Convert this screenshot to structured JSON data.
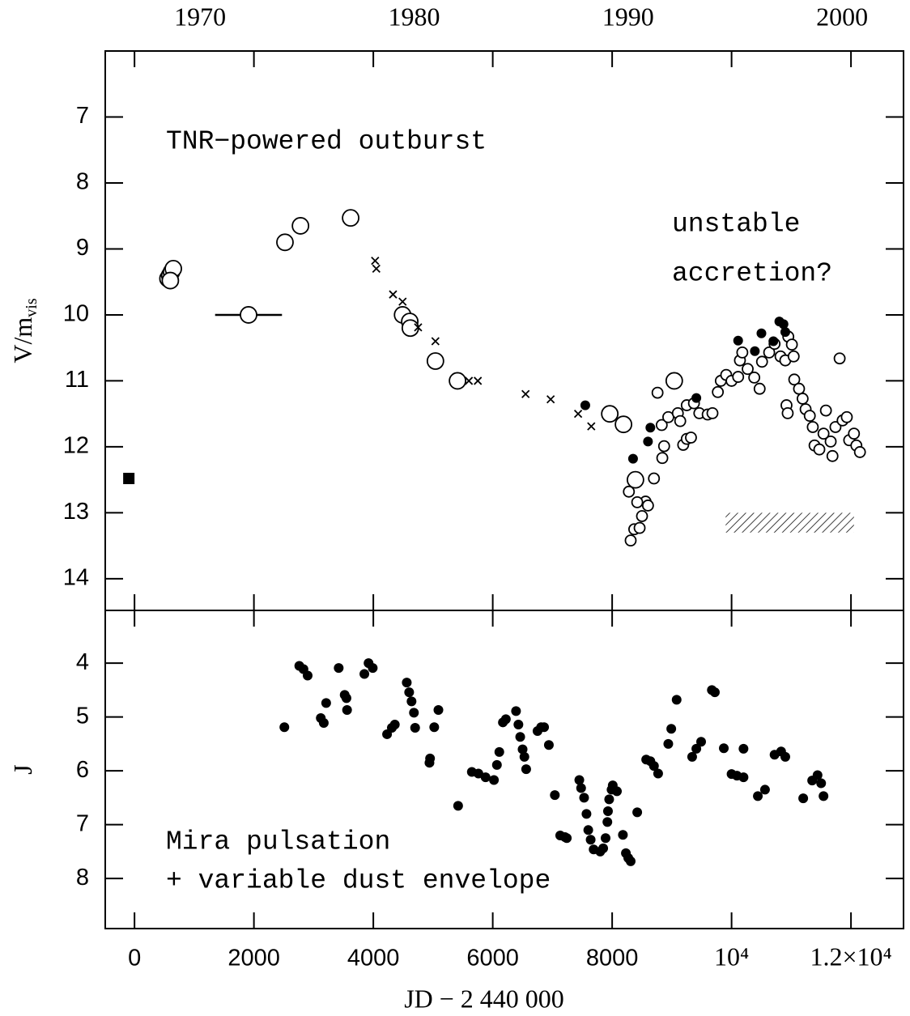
{
  "chart_data": [
    {
      "type": "scatter",
      "y_label": "V/m",
      "y_label_sub": "vis",
      "xlim": [
        -490,
        12880
      ],
      "ylim": [
        6,
        14.48
      ],
      "y_inverted": true,
      "xticks": [
        0,
        2000,
        4000,
        6000,
        8000,
        10000,
        12000
      ],
      "xtick_labels": false,
      "yticks": [
        7,
        8,
        9,
        10,
        11,
        12,
        13,
        14
      ],
      "x2lim": [
        1965.57,
        2002.87
      ],
      "x2ticks": [
        1970,
        1980,
        1990,
        2000
      ],
      "annotations": [
        "TNR−powered outburst",
        "unstable",
        "accretion?"
      ],
      "series": [
        {
          "marker": "open",
          "size": "large",
          "color": "#000000",
          "x": [
            560,
            590,
            620,
            650,
            600,
            1910,
            2520,
            2780,
            3620,
            4490,
            4610,
            4620,
            5040,
            5410,
            7960,
            8190,
            8390,
            9040
          ],
          "values": [
            9.45,
            9.4,
            9.35,
            9.3,
            9.48,
            10.0,
            8.9,
            8.65,
            8.53,
            10.0,
            10.1,
            10.2,
            10.7,
            11.0,
            11.5,
            11.66,
            12.5,
            11.0
          ]
        },
        {
          "marker": "open",
          "size": "small",
          "color": "#000000",
          "x": [
            8310,
            8370,
            8460,
            8500,
            8560,
            8600,
            8280,
            8420,
            8700,
            8840,
            8870,
            8760,
            8830,
            8940,
            9100,
            9140,
            9190,
            9250,
            9320,
            9250,
            9370,
            9460,
            9600,
            9680,
            9770,
            9820,
            9910,
            10000,
            10110,
            10140,
            10180,
            10270,
            10380,
            10470,
            10510,
            10630,
            10720,
            10820,
            10900,
            10950,
            11010,
            11040,
            10920,
            10940,
            11050,
            11130,
            11190,
            11240,
            11310,
            11360,
            11390,
            11470,
            11540,
            11580,
            11660,
            11690,
            11740,
            11810,
            11860,
            11930,
            11970,
            12050,
            12090,
            12150
          ],
          "values": [
            13.42,
            13.25,
            13.23,
            13.05,
            12.83,
            12.89,
            12.68,
            12.84,
            12.48,
            12.17,
            11.99,
            11.18,
            11.67,
            11.55,
            11.49,
            11.61,
            11.97,
            11.88,
            11.86,
            11.37,
            11.34,
            11.49,
            11.51,
            11.49,
            11.17,
            11.0,
            10.91,
            11.0,
            10.94,
            10.69,
            10.57,
            10.82,
            10.95,
            11.12,
            10.71,
            10.57,
            10.44,
            10.63,
            10.69,
            10.33,
            10.45,
            10.63,
            11.37,
            11.49,
            10.98,
            11.12,
            11.27,
            11.43,
            11.53,
            11.7,
            11.98,
            12.04,
            11.8,
            11.45,
            11.92,
            12.14,
            11.7,
            10.66,
            11.6,
            11.55,
            11.9,
            11.8,
            11.98,
            12.08
          ]
        },
        {
          "marker": "filled",
          "color": "#000000",
          "x": [
            7550,
            8350,
            8600,
            8640,
            9410,
            10110,
            10390,
            10500,
            10700,
            10800,
            10870,
            10900
          ],
          "values": [
            11.37,
            12.18,
            11.92,
            11.71,
            11.26,
            10.39,
            10.55,
            10.28,
            10.4,
            10.1,
            10.14,
            10.26
          ]
        },
        {
          "marker": "cross",
          "color": "#000000",
          "x": [
            4030,
            4050,
            4330,
            4490,
            4750,
            5040,
            5600,
            5750,
            6550,
            6970,
            7430,
            7650
          ],
          "values": [
            9.18,
            9.3,
            9.69,
            9.8,
            10.19,
            10.4,
            11.0,
            11.0,
            11.2,
            11.28,
            11.5,
            11.69
          ]
        },
        {
          "marker": "square",
          "color": "#000000",
          "x": [
            -95
          ],
          "values": [
            12.48
          ]
        }
      ],
      "errorbar": {
        "x": 1910,
        "xerr": 560,
        "y": 10.0
      },
      "shaded_region": {
        "x": [
          9900,
          12050
        ],
        "y": [
          13.0,
          13.3
        ]
      }
    },
    {
      "type": "scatter",
      "x_label": "JD − 2 440 000",
      "y_label": "J",
      "xlim": [
        -490,
        12880
      ],
      "ylim": [
        3.02,
        8.93
      ],
      "y_inverted": true,
      "xticks": [
        0,
        2000,
        4000,
        6000,
        8000,
        {
          "value": 10000,
          "label": "10⁴"
        },
        {
          "value": 12000,
          "label": "1.2×10⁴"
        }
      ],
      "xtick_labels": true,
      "yticks": [
        4,
        5,
        6,
        7,
        8
      ],
      "annotations": [
        "Mira pulsation",
        "+ variable dust envelope"
      ],
      "series": [
        {
          "marker": "filled",
          "color": "#000000",
          "x": [
            2510,
            2760,
            2830,
            2900,
            3120,
            3170,
            3210,
            3420,
            3520,
            3550,
            3560,
            3850,
            3920,
            3990,
            4230,
            4310,
            4360,
            4560,
            4600,
            4640,
            4680,
            4700,
            4940,
            4950,
            5020,
            5090,
            5420,
            5650,
            5760,
            5880,
            6020,
            6070,
            6110,
            6170,
            6220,
            6390,
            6430,
            6460,
            6500,
            6530,
            6560,
            6750,
            6810,
            6860,
            6940,
            7040,
            7130,
            7210,
            7240,
            7450,
            7480,
            7530,
            7570,
            7600,
            7640,
            7690,
            7800,
            7850,
            7890,
            7920,
            7930,
            7950,
            7990,
            8010,
            8080,
            8180,
            8230,
            8270,
            8310,
            8420,
            8570,
            8640,
            8700,
            8770,
            8940,
            8990,
            9080,
            9340,
            9410,
            9490,
            9670,
            9720,
            9870,
            10000,
            10090,
            10200,
            10200,
            10440,
            10560,
            10720,
            10830,
            10900,
            11200,
            11350,
            11440,
            11500,
            11540
          ],
          "values": [
            5.19,
            4.05,
            4.11,
            4.23,
            5.02,
            5.11,
            4.74,
            4.09,
            4.59,
            4.65,
            4.87,
            4.2,
            4.0,
            4.09,
            5.32,
            5.2,
            5.14,
            4.36,
            4.54,
            4.71,
            4.92,
            5.2,
            5.85,
            5.77,
            5.19,
            4.87,
            6.65,
            6.02,
            6.05,
            6.12,
            6.17,
            5.89,
            5.65,
            5.1,
            5.04,
            4.89,
            5.14,
            5.37,
            5.6,
            5.74,
            5.97,
            5.26,
            5.19,
            5.19,
            5.52,
            6.45,
            7.2,
            7.23,
            7.25,
            6.17,
            6.32,
            6.5,
            6.8,
            7.1,
            7.28,
            7.46,
            7.5,
            7.44,
            7.25,
            6.95,
            6.75,
            6.53,
            6.35,
            6.27,
            6.38,
            7.19,
            7.53,
            7.62,
            7.68,
            6.77,
            5.79,
            5.82,
            5.91,
            6.05,
            5.5,
            5.22,
            4.68,
            5.74,
            5.59,
            5.46,
            4.5,
            4.54,
            5.58,
            6.06,
            6.09,
            5.59,
            6.12,
            6.47,
            6.35,
            5.7,
            5.64,
            5.74,
            6.51,
            6.18,
            6.08,
            6.23,
            6.47
          ]
        }
      ]
    }
  ]
}
